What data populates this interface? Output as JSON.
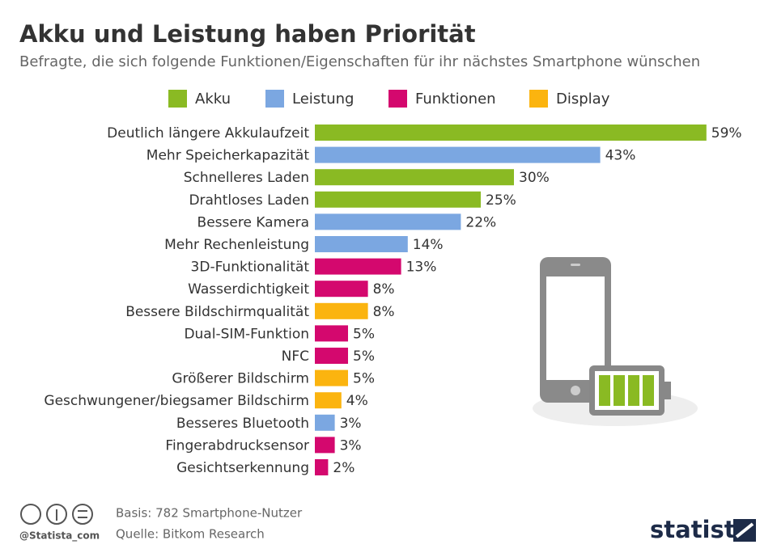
{
  "chart_data": {
    "type": "bar",
    "orientation": "horizontal",
    "title": "Akku und Leistung haben Priorität",
    "subtitle": "Befragte, die sich folgende Funktionen/Eigenschaften für ihr nächstes Smartphone wünschen",
    "categories": [
      "Deutlich längere Akkulaufzeit",
      "Mehr Speicherkapazität",
      "Schnelleres Laden",
      "Drahtloses Laden",
      "Bessere Kamera",
      "Mehr Rechenleistung",
      "3D-Funktionalität",
      "Wasserdichtigkeit",
      "Bessere Bildschirmqualität",
      "Dual-SIM-Funktion",
      "NFC",
      "Größerer Bildschirm",
      "Geschwungener/biegsamer Bildschirm",
      "Besseres Bluetooth",
      "Fingerabdrucksensor",
      "Gesichtserkennung"
    ],
    "series": [
      {
        "name": "Akku",
        "color": "#8aba23",
        "values": [
          59,
          null,
          30,
          25,
          null,
          null,
          null,
          null,
          null,
          null,
          null,
          null,
          null,
          null,
          null,
          null
        ],
        "value_labels": [
          "59%",
          null,
          "30%",
          "25%",
          null,
          null,
          null,
          null,
          null,
          null,
          null,
          null,
          null,
          null,
          null,
          null
        ]
      },
      {
        "name": "Leistung",
        "color": "#7ba7e1",
        "values": [
          null,
          43,
          null,
          null,
          22,
          14,
          null,
          null,
          null,
          null,
          null,
          null,
          null,
          3,
          null,
          null
        ],
        "value_labels": [
          null,
          "43%",
          null,
          null,
          "22%",
          "14%",
          null,
          null,
          null,
          null,
          null,
          null,
          null,
          "3%",
          null,
          null
        ]
      },
      {
        "name": "Funktionen",
        "color": "#d4086e",
        "values": [
          null,
          null,
          null,
          null,
          null,
          null,
          13,
          8,
          null,
          5,
          5,
          null,
          null,
          null,
          3,
          2
        ],
        "value_labels": [
          null,
          null,
          null,
          null,
          null,
          null,
          "13%",
          "8%",
          null,
          "5%",
          "5%",
          null,
          null,
          null,
          "3%",
          "2%"
        ]
      },
      {
        "name": "Display",
        "color": "#fbb40f",
        "values": [
          null,
          null,
          null,
          null,
          null,
          null,
          null,
          null,
          8,
          null,
          null,
          5,
          4,
          null,
          null,
          null
        ],
        "value_labels": [
          null,
          null,
          null,
          null,
          null,
          null,
          null,
          null,
          "8%",
          null,
          null,
          "5%",
          "4%",
          null,
          null,
          null
        ]
      }
    ]
  },
  "footer": {
    "basis": "Basis: 782 Smartphone-Nutzer",
    "source": "Quelle: Bitkom Research",
    "handle": "@Statista_com",
    "brand": "statista"
  }
}
